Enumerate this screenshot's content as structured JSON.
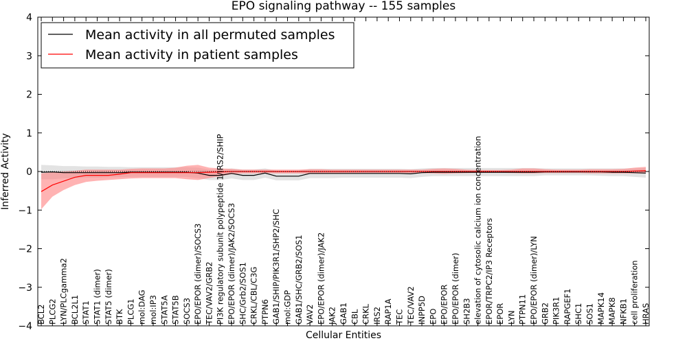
{
  "chart_data": {
    "type": "line",
    "title": "EPO signaling pathway -- 155 samples",
    "xlabel": "Cellular Entities",
    "ylabel": "Inferred Activity",
    "ylim": [
      -4,
      4
    ],
    "yticks": [
      "4",
      "3",
      "2",
      "1",
      "0",
      "−1",
      "−2",
      "−3",
      "−4"
    ],
    "ytick_values": [
      4,
      3,
      2,
      1,
      0,
      -1,
      -2,
      -3,
      -4
    ],
    "legend": {
      "position": "top-left",
      "entries": [
        "Mean activity in all permuted samples",
        "Mean activity in patient samples"
      ]
    },
    "series_colors": {
      "permuted": "#000000",
      "patient": "#ff0000",
      "permuted_band": "#d9d9d9",
      "patient_band": "#ff8080"
    },
    "categories": [
      "BCL2",
      "PLCG2",
      "LYN/PLCgamma2",
      "BCL2L1",
      "STAT1",
      "STAT1 (dimer)",
      "STAT5 (dimer)",
      "BTK",
      "PLCG1",
      "mol:DAG",
      "mol:IP3",
      "STAT5A",
      "STAT5B",
      "SOCS3",
      "EPO/EPOR (dimer)/SOCS3",
      "TEC/VAV2/GRB2",
      "PI3K regulatory subunit polypeptide 1/IRS2/SHIP",
      "EPO/EPOR (dimer)/JAK2/SOCS3",
      "SHC/Grb2/SOS1",
      "CRKL/CBL/C3G",
      "PTPN6",
      "GAB1/SHIP/PIK3R1/SHP2/SHC",
      "mol:GDP",
      "GAB1/SHC/GRB2/SOS1",
      "VAV2",
      "EPO/EPOR (dimer)/JAK2",
      "JAK2",
      "GAB1",
      "CBL",
      "CRKL",
      "IRS2",
      "RAP1A",
      "TEC",
      "TEC/VAV2",
      "INPP5D",
      "EPO",
      "EPO/EPOR",
      "EPO/EPOR (dimer)",
      "SH2B3",
      "elevation of cytosolic calcium ion concentration",
      "EPOR/TRPC2/IP3 Receptors",
      "EPOR",
      "LYN",
      "PTPN11",
      "EPO/EPOR (dimer)/LYN",
      "GRB2",
      "PIK3R1",
      "RAPGEF1",
      "SHC1",
      "SOS1",
      "MAPK14",
      "MAPK8",
      "NFKB1",
      "cell proliferation",
      "HRAS"
    ],
    "series": [
      {
        "name": "Mean activity in all permuted samples",
        "values": [
          -0.02,
          -0.01,
          -0.03,
          -0.03,
          -0.03,
          -0.03,
          -0.03,
          -0.03,
          -0.02,
          -0.02,
          -0.02,
          -0.02,
          -0.02,
          -0.02,
          -0.04,
          -0.1,
          -0.1,
          -0.05,
          -0.1,
          -0.1,
          -0.04,
          -0.12,
          -0.12,
          -0.12,
          -0.05,
          -0.05,
          -0.05,
          -0.05,
          -0.05,
          -0.05,
          -0.05,
          -0.05,
          -0.05,
          -0.06,
          -0.03,
          -0.02,
          -0.02,
          -0.02,
          -0.02,
          -0.02,
          -0.02,
          -0.02,
          -0.02,
          -0.02,
          -0.02,
          -0.01,
          -0.01,
          -0.01,
          -0.01,
          -0.01,
          -0.01,
          -0.02,
          -0.02,
          -0.03,
          -0.04
        ],
        "lower": [
          -0.2,
          -0.2,
          -0.18,
          -0.17,
          -0.16,
          -0.16,
          -0.15,
          -0.15,
          -0.14,
          -0.14,
          -0.14,
          -0.14,
          -0.14,
          -0.14,
          -0.17,
          -0.22,
          -0.22,
          -0.18,
          -0.22,
          -0.22,
          -0.16,
          -0.23,
          -0.23,
          -0.23,
          -0.17,
          -0.17,
          -0.17,
          -0.16,
          -0.16,
          -0.16,
          -0.16,
          -0.16,
          -0.16,
          -0.17,
          -0.14,
          -0.12,
          -0.12,
          -0.12,
          -0.12,
          -0.12,
          -0.12,
          -0.12,
          -0.12,
          -0.12,
          -0.12,
          -0.1,
          -0.1,
          -0.1,
          -0.1,
          -0.1,
          -0.11,
          -0.12,
          -0.12,
          -0.14,
          -0.16
        ],
        "upper": [
          0.17,
          0.16,
          0.14,
          0.14,
          0.13,
          0.13,
          0.12,
          0.12,
          0.11,
          0.11,
          0.11,
          0.11,
          0.11,
          0.11,
          0.1,
          0.05,
          0.05,
          0.08,
          0.05,
          0.05,
          0.08,
          0.02,
          0.02,
          0.02,
          0.07,
          0.07,
          0.07,
          0.07,
          0.07,
          0.07,
          0.07,
          0.07,
          0.07,
          0.06,
          0.08,
          0.09,
          0.09,
          0.09,
          0.09,
          0.09,
          0.09,
          0.09,
          0.09,
          0.09,
          0.09,
          0.08,
          0.08,
          0.08,
          0.08,
          0.08,
          0.08,
          0.08,
          0.08,
          0.08,
          0.09
        ]
      },
      {
        "name": "Mean activity in patient samples",
        "values": [
          -0.52,
          -0.35,
          -0.25,
          -0.15,
          -0.1,
          -0.1,
          -0.1,
          -0.07,
          -0.03,
          -0.03,
          -0.03,
          -0.03,
          -0.03,
          -0.03,
          -0.03,
          -0.02,
          -0.01,
          0.0,
          0.0,
          0.0,
          0.0,
          0.0,
          0.0,
          0.0,
          0.0,
          0.0,
          0.0,
          0.0,
          0.0,
          0.0,
          0.0,
          0.0,
          0.0,
          0.0,
          0.0,
          0.0,
          0.0,
          0.0,
          0.0,
          0.0,
          0.0,
          0.0,
          0.0,
          0.0,
          0.0,
          0.0,
          0.0,
          0.0,
          0.0,
          0.0,
          0.0,
          0.0,
          0.0,
          0.01,
          0.02
        ],
        "lower": [
          -0.98,
          -0.65,
          -0.48,
          -0.35,
          -0.27,
          -0.24,
          -0.22,
          -0.2,
          -0.18,
          -0.17,
          -0.17,
          -0.17,
          -0.17,
          -0.2,
          -0.22,
          -0.17,
          -0.12,
          -0.07,
          -0.05,
          -0.05,
          -0.04,
          -0.05,
          -0.05,
          -0.05,
          -0.06,
          -0.06,
          -0.05,
          -0.04,
          -0.04,
          -0.04,
          -0.04,
          -0.04,
          -0.04,
          -0.04,
          -0.04,
          -0.05,
          -0.06,
          -0.05,
          -0.04,
          -0.03,
          -0.03,
          -0.03,
          -0.04,
          -0.05,
          -0.05,
          -0.04,
          -0.04,
          -0.04,
          -0.04,
          -0.05,
          -0.05,
          -0.05,
          -0.05,
          -0.05,
          -0.05
        ],
        "upper": [
          -0.05,
          -0.02,
          0.0,
          0.02,
          0.05,
          0.05,
          0.05,
          0.05,
          0.07,
          0.08,
          0.08,
          0.08,
          0.1,
          0.15,
          0.17,
          0.1,
          0.08,
          0.07,
          0.05,
          0.05,
          0.05,
          0.05,
          0.05,
          0.05,
          0.06,
          0.06,
          0.05,
          0.05,
          0.05,
          0.05,
          0.05,
          0.05,
          0.05,
          0.05,
          0.05,
          0.07,
          0.08,
          0.07,
          0.05,
          0.04,
          0.04,
          0.04,
          0.05,
          0.08,
          0.08,
          0.06,
          0.05,
          0.05,
          0.05,
          0.06,
          0.06,
          0.06,
          0.07,
          0.1,
          0.12
        ]
      }
    ]
  }
}
